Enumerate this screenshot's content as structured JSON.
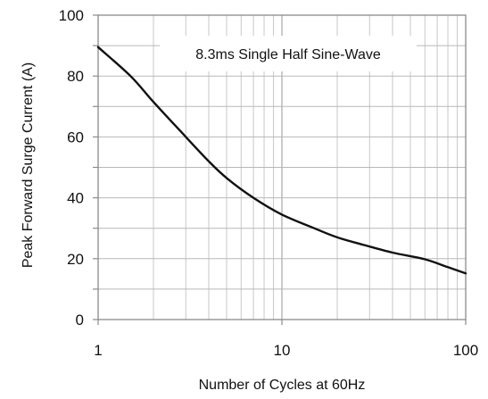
{
  "chart_data": {
    "type": "line",
    "title": "",
    "annotation": "8.3ms Single Half Sine-Wave",
    "xlabel": "Number of Cycles at 60Hz",
    "ylabel": "Peak Forward Surge Current (A)",
    "xscale": "log",
    "xlim": [
      1,
      100
    ],
    "ylim": [
      0,
      100
    ],
    "x_ticks": [
      "1",
      "10",
      "100"
    ],
    "y_ticks": [
      "0",
      "20",
      "40",
      "60",
      "80",
      "100"
    ],
    "grid": true,
    "series": [
      {
        "x": [
          1,
          1.5,
          2,
          3,
          4,
          5,
          7,
          10,
          15,
          20,
          28,
          40,
          60,
          80,
          100
        ],
        "y": [
          89.5,
          80,
          71.5,
          60,
          52,
          46.5,
          40,
          34.5,
          30,
          27,
          24.5,
          22,
          19.8,
          17.2,
          15.2
        ]
      }
    ]
  }
}
